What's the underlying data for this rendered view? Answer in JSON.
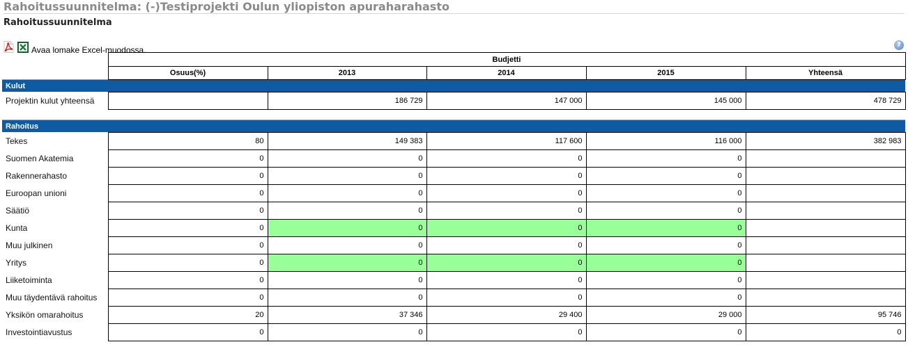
{
  "header": {
    "title": "Rahoitussuunnitelma: (-)Testiprojekti Oulun yliopiston apuraharahasto",
    "subtitle": "Rahoitussuunnitelma"
  },
  "toolbar": {
    "excel_link": "Avaa lomake Excel-muodossa.",
    "help_glyph": "?"
  },
  "table": {
    "group_header": "Budjetti",
    "columns": [
      "Osuus(%)",
      "2013",
      "2014",
      "2015",
      "Yhteensä"
    ],
    "kulut": {
      "title": "Kulut",
      "rows": [
        {
          "label": "Projektin kulut yhteensä",
          "values": [
            "",
            "186 729",
            "147 000",
            "145 000",
            "478 729"
          ]
        }
      ]
    },
    "rahoitus": {
      "title": "Rahoitus",
      "rows": [
        {
          "label": "Tekes",
          "values": [
            "80",
            "149 383",
            "117 600",
            "116 000",
            "382 983"
          ]
        },
        {
          "label": "Suomen Akatemia",
          "values": [
            "0",
            "0",
            "0",
            "0",
            ""
          ]
        },
        {
          "label": "Rakennerahasto",
          "values": [
            "0",
            "0",
            "0",
            "0",
            ""
          ]
        },
        {
          "label": "Euroopan unioni",
          "values": [
            "0",
            "0",
            "0",
            "0",
            ""
          ]
        },
        {
          "label": "Säätiö",
          "values": [
            "0",
            "0",
            "0",
            "0",
            ""
          ]
        },
        {
          "label": "Kunta",
          "values": [
            "0",
            "0",
            "0",
            "0",
            ""
          ],
          "highlight": true
        },
        {
          "label": "Muu julkinen",
          "values": [
            "0",
            "0",
            "0",
            "0",
            ""
          ]
        },
        {
          "label": "Yritys",
          "values": [
            "0",
            "0",
            "0",
            "0",
            ""
          ],
          "highlight": true
        },
        {
          "label": "Liiketoiminta",
          "values": [
            "0",
            "0",
            "0",
            "0",
            ""
          ]
        },
        {
          "label": "Muu täydentävä rahoitus",
          "values": [
            "0",
            "0",
            "0",
            "0",
            ""
          ]
        },
        {
          "label": "Yksikön omarahoitus",
          "values": [
            "20",
            "37 346",
            "29 400",
            "29 000",
            "95 746"
          ]
        },
        {
          "label": "Investointiavustus",
          "values": [
            "0",
            "0",
            "0",
            "0",
            "0"
          ]
        }
      ]
    }
  },
  "colors": {
    "section_bar": "#0e5aa3",
    "highlight_cell": "#99ff99",
    "title_text": "#8a8a8a"
  }
}
